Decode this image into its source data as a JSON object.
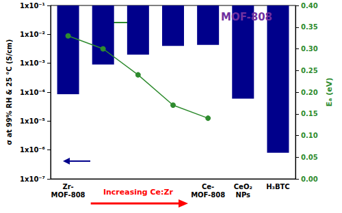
{
  "chart_data": {
    "type": "bar",
    "title": "MOF-808",
    "categories": [
      "Zr-\nMOF-808",
      null,
      null,
      null,
      "Ce-\nMOF-808",
      "CeO₂\nNPs",
      "H₃BTC"
    ],
    "series": [
      {
        "type": "bar",
        "color": "#00008b",
        "values": [
          8.5e-05,
          0.0009,
          0.002,
          0.004,
          0.0043,
          6e-05,
          8e-07
        ]
      },
      {
        "type": "line",
        "axis": "y2",
        "color": "#2e8b2e",
        "marker": "circle",
        "values": [
          0.33,
          0.3,
          0.24,
          0.17,
          0.14,
          null,
          null
        ]
      }
    ],
    "y_label": "σ at 99% RH & 25 °C (S/cm)",
    "y2_label": "Eₐ (eV)",
    "log": "y",
    "ylim": [
      1e-07,
      0.1
    ],
    "yticks": [
      {
        "value": 1e-07,
        "label": "1x10⁻⁷"
      },
      {
        "value": 1e-06,
        "label": "1x10⁻⁶"
      },
      {
        "value": 1e-05,
        "label": "1x10⁻⁵"
      },
      {
        "value": 0.0001,
        "label": "1x10⁻⁴"
      },
      {
        "value": 0.001,
        "label": "1x10⁻³"
      },
      {
        "value": 0.01,
        "label": "1x10⁻²"
      },
      {
        "value": 0.1,
        "label": "1x10⁻¹"
      }
    ],
    "y2lim": [
      0,
      0.4
    ],
    "y2ticks": [
      {
        "value": 0,
        "label": "0.00"
      },
      0.05,
      {
        "value": 0.1,
        "label": "0.10"
      },
      0.15,
      {
        "value": 0.2,
        "label": "0.20"
      },
      0.25,
      {
        "value": 0.3,
        "label": "0.30"
      },
      0.35,
      {
        "value": 0.4,
        "label": "0.40"
      }
    ],
    "annotations": [
      {
        "text": "Increasing Ce:Zr",
        "color": "#ff0000"
      }
    ],
    "grid": false
  }
}
